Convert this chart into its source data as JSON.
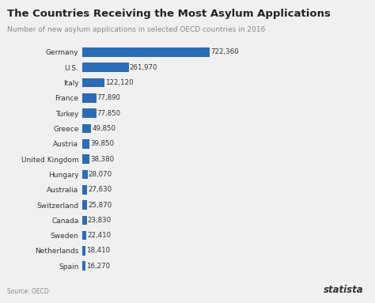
{
  "title": "The Countries Receiving the Most Asylum Applications",
  "subtitle": "Number of new asylum applications in selected OECD countries in 2016",
  "source": "Source: OECD",
  "watermark": "statista",
  "categories": [
    "Germany",
    "U.S.",
    "Italy",
    "France",
    "Turkey",
    "Greece",
    "Austria",
    "United Kingdom",
    "Hungary",
    "Australia",
    "Switzerland",
    "Canada",
    "Sweden",
    "Netherlands",
    "Spain"
  ],
  "values": [
    722360,
    261970,
    122120,
    77890,
    77850,
    49850,
    39850,
    38380,
    28070,
    27630,
    25870,
    23830,
    22410,
    18410,
    16270
  ],
  "labels": [
    "722,360",
    "261,970",
    "122,120",
    "77,890",
    "77,850",
    "49,850",
    "39,850",
    "38,380",
    "28,070",
    "27,630",
    "25,870",
    "23,830",
    "22,410",
    "18,410",
    "16,270"
  ],
  "bar_color": "#2b6cb8",
  "bg_color": "#f0f0f0",
  "title_color": "#222222",
  "subtitle_color": "#888888",
  "label_color": "#333333",
  "tick_color": "#333333"
}
